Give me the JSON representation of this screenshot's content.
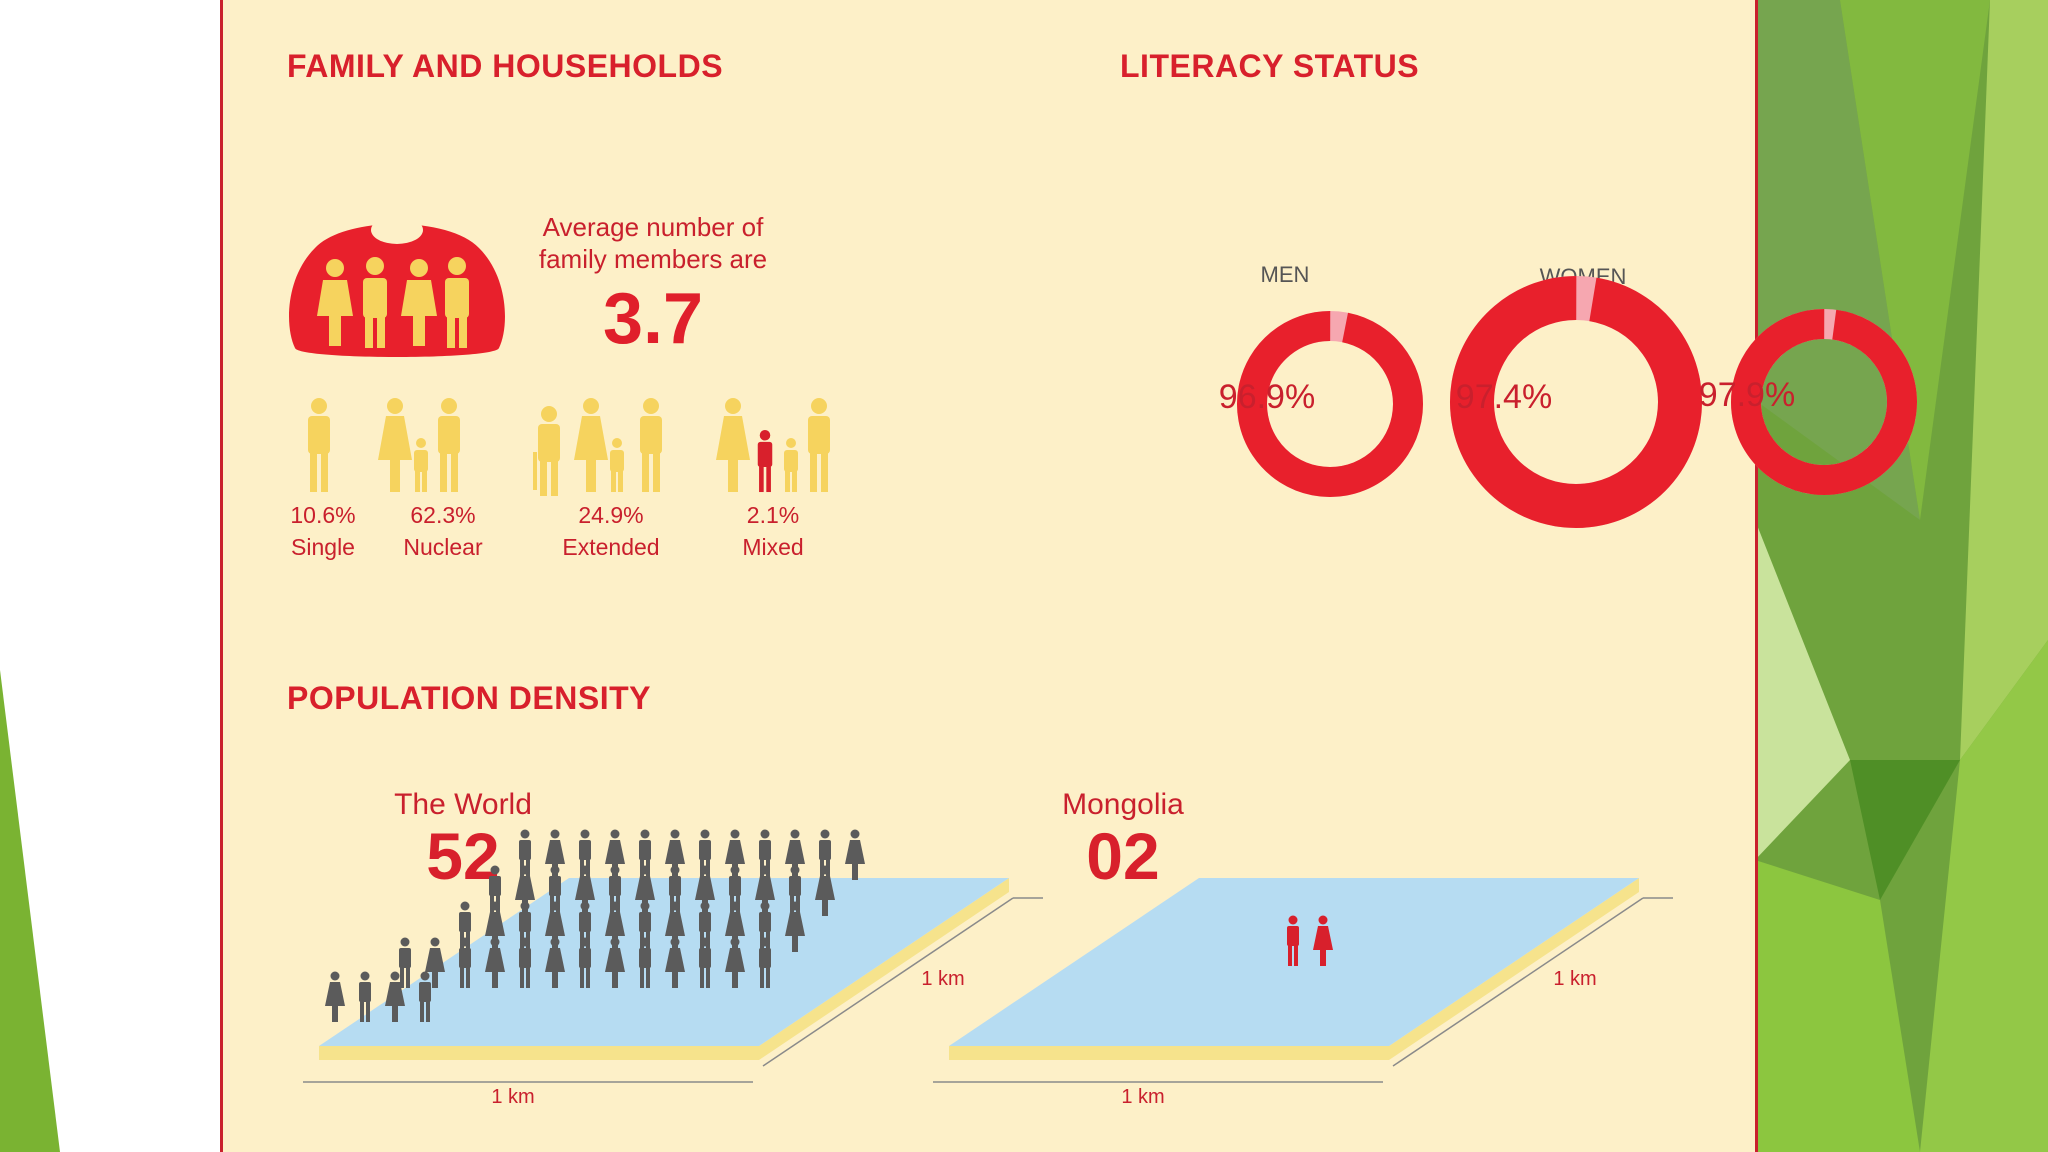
{
  "sections": {
    "family": "FAMILY AND HOUSEHOLDS",
    "literacy": "LITERACY STATUS",
    "density": "POPULATION DENSITY"
  },
  "family": {
    "avg_line1": "Average number of",
    "avg_line2": "family members are",
    "avg_value": "3.7",
    "types": [
      {
        "pct": "10.6%",
        "label": "Single"
      },
      {
        "pct": "62.3%",
        "label": "Nuclear"
      },
      {
        "pct": "24.9%",
        "label": "Extended"
      },
      {
        "pct": "2.1%",
        "label": "Mixed"
      }
    ]
  },
  "literacy": {
    "men_label": "MEN",
    "women_label": "WOMEN",
    "rings": [
      {
        "value": 96.9,
        "text": "96.9%"
      },
      {
        "value": 97.4,
        "text": "97.4%"
      },
      {
        "value": 97.9,
        "text": "97.9%"
      }
    ]
  },
  "density": {
    "world_label": "The World",
    "world_value": "52",
    "mongolia_label": "Mongolia",
    "mongolia_value": "02",
    "km": "1 km"
  },
  "colors": {
    "red": "#e8202c",
    "pink": "#f6a7b0",
    "yellow": "#f6d35e",
    "gray": "#5b5b5b",
    "blue": "#b6dcf2",
    "cream": "#fdf0c8"
  }
}
